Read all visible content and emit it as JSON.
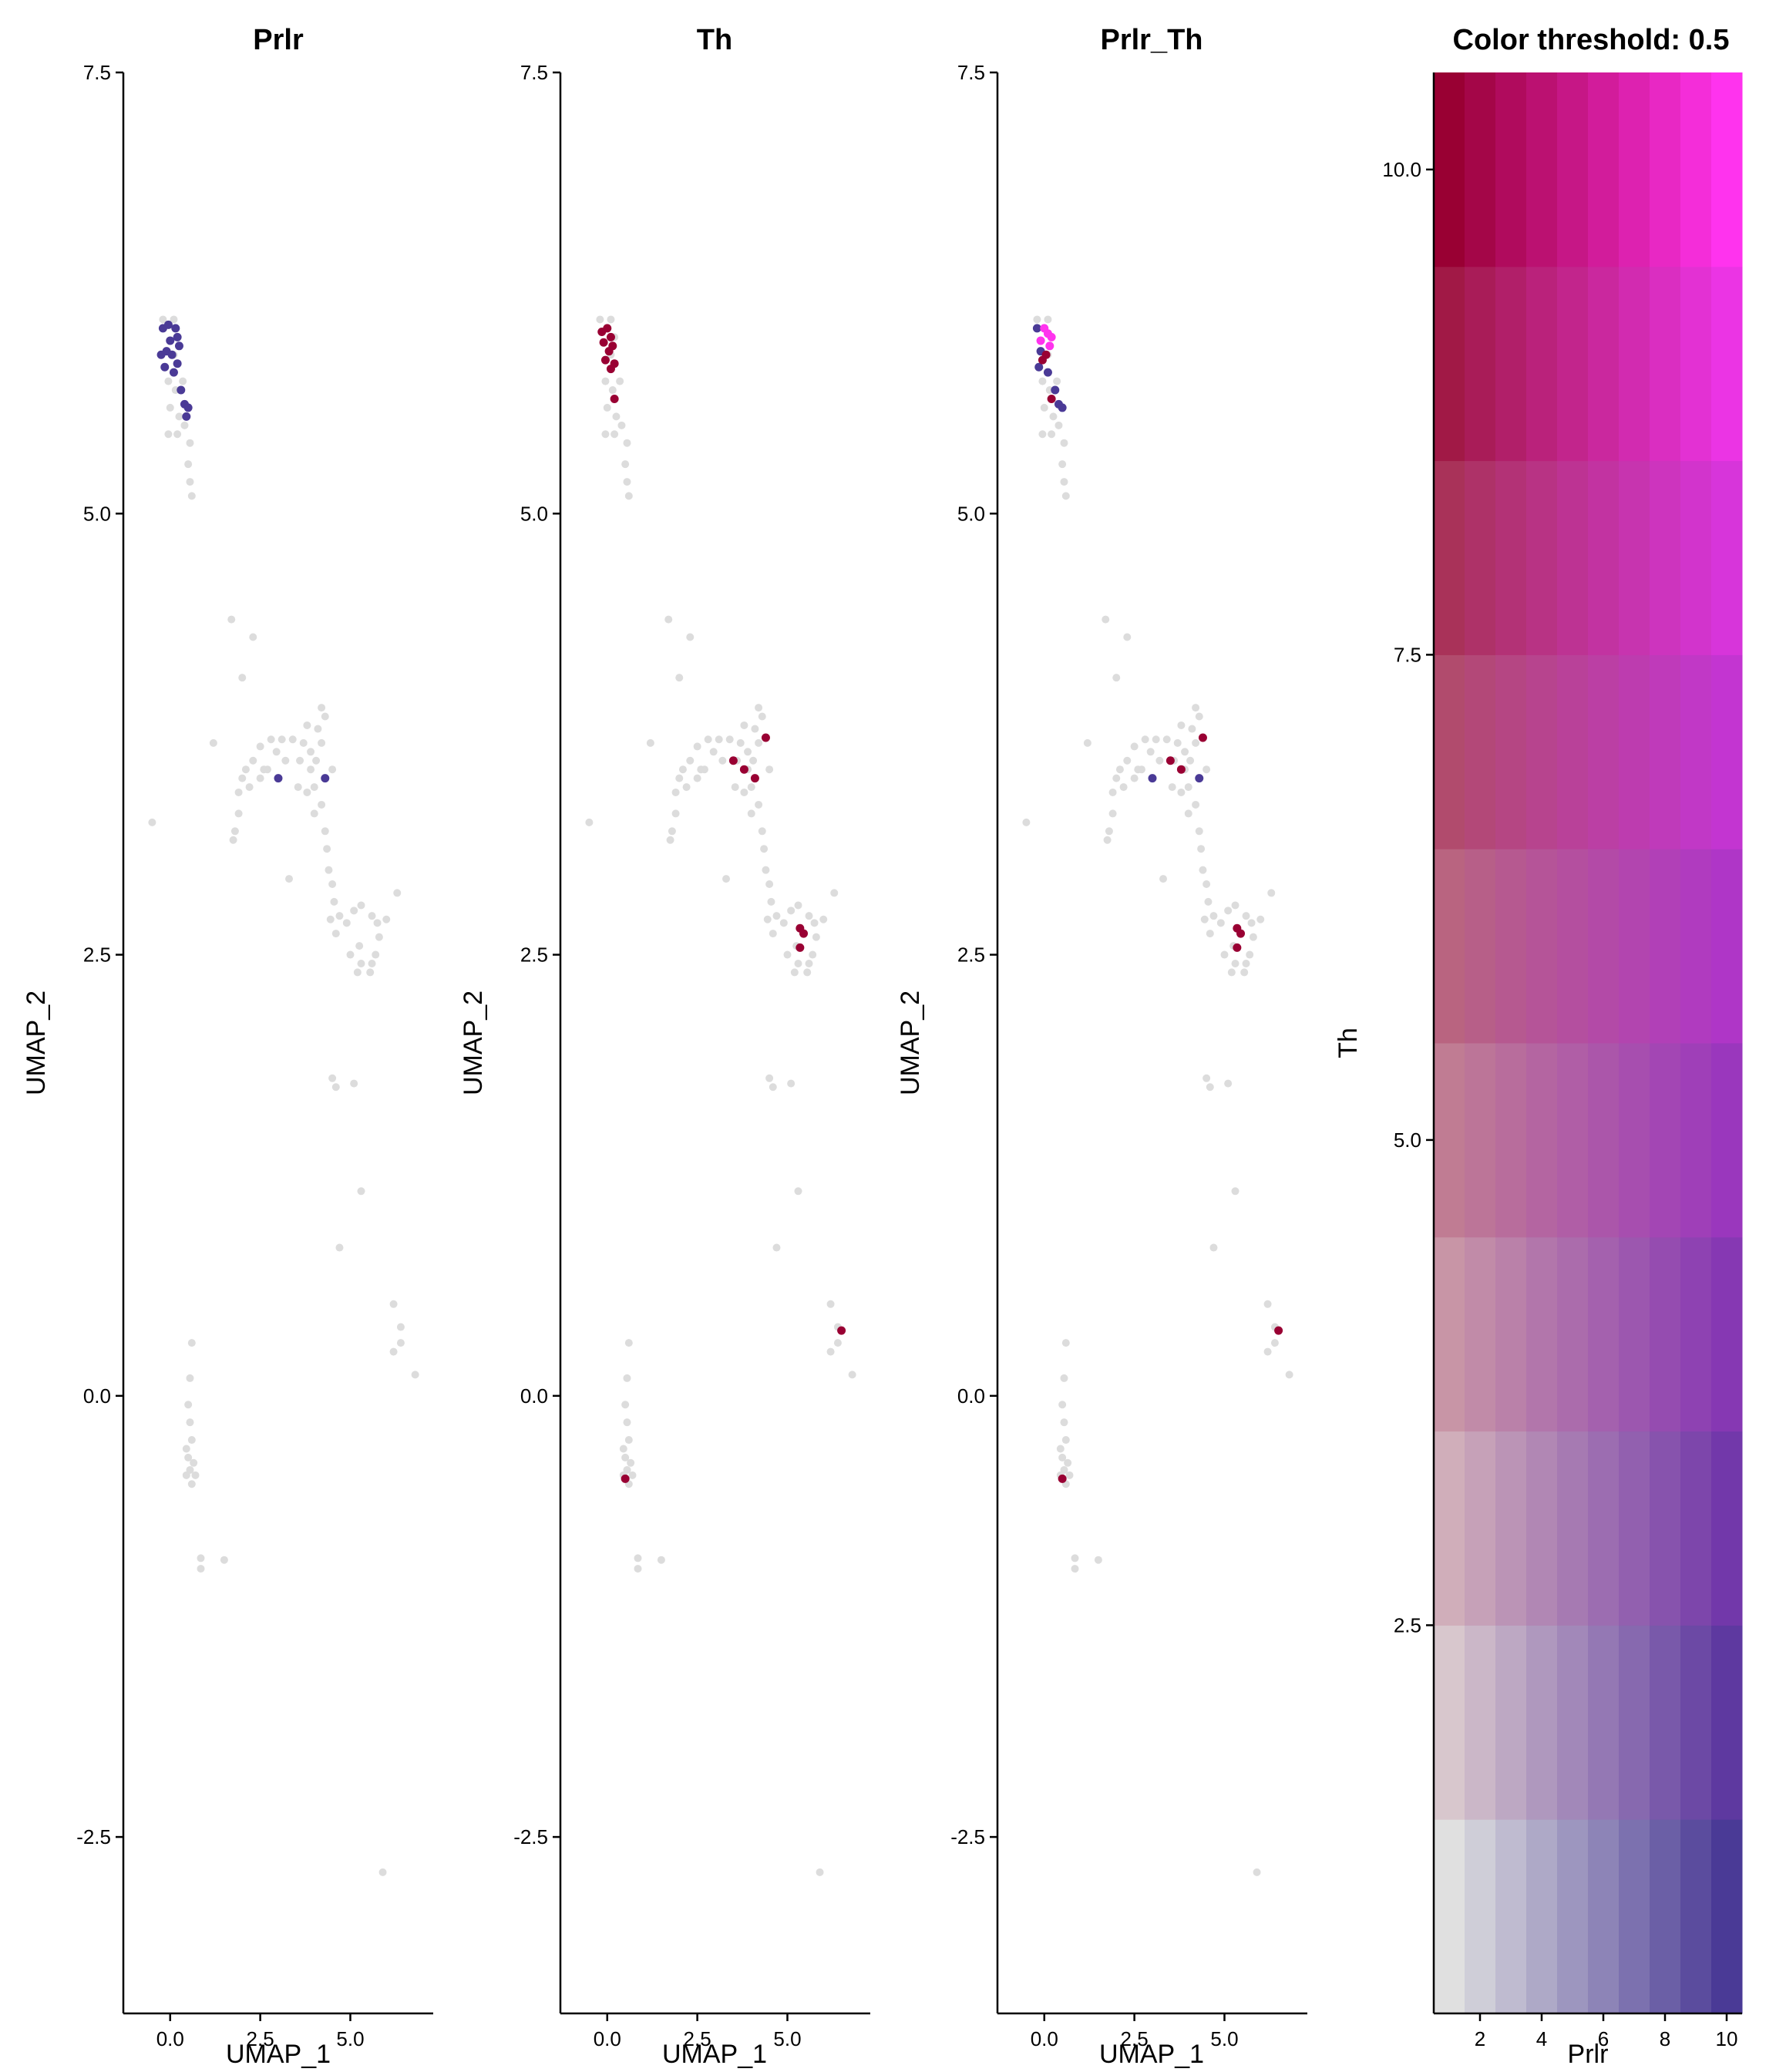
{
  "colors": {
    "point_background": "#DCDCDC",
    "prlr": "#4A3A96",
    "th": "#990033",
    "coexpress": "#FF33EE",
    "axis": "#000000"
  },
  "chart_data": [
    {
      "type": "scatter",
      "title": "Prlr",
      "xlabel": "UMAP_1",
      "ylabel": "UMAP_2",
      "xlim": [
        -1.3,
        7.3
      ],
      "ylim": [
        -3.5,
        7.5
      ],
      "xticks": [
        "0.0",
        "2.5",
        "5.0"
      ],
      "yticks": [
        "-2.5",
        "0.0",
        "2.5",
        "5.0",
        "7.5"
      ],
      "highlight_color": "#4A3A96",
      "highlighted_points": [
        [
          -0.2,
          6.05
        ],
        [
          -0.05,
          6.07
        ],
        [
          0.15,
          6.05
        ],
        [
          0.0,
          5.98
        ],
        [
          0.2,
          6.0
        ],
        [
          -0.1,
          5.92
        ],
        [
          0.05,
          5.9
        ],
        [
          0.25,
          5.95
        ],
        [
          -0.15,
          5.83
        ],
        [
          0.1,
          5.8
        ],
        [
          0.2,
          5.85
        ],
        [
          0.3,
          5.7
        ],
        [
          0.4,
          5.62
        ],
        [
          0.5,
          5.6
        ],
        [
          0.45,
          5.55
        ],
        [
          -0.25,
          5.9
        ],
        [
          3.0,
          3.5
        ],
        [
          4.3,
          3.5
        ]
      ],
      "background_points": "shared_umap"
    },
    {
      "type": "scatter",
      "title": "Th",
      "xlabel": "UMAP_1",
      "ylabel": "UMAP_2",
      "xlim": [
        -1.3,
        7.3
      ],
      "ylim": [
        -3.5,
        7.5
      ],
      "xticks": [
        "0.0",
        "2.5",
        "5.0"
      ],
      "yticks": [
        "-2.5",
        "0.0",
        "2.5",
        "5.0",
        "7.5"
      ],
      "highlight_color": "#990033",
      "highlighted_points": [
        [
          -0.15,
          6.03
        ],
        [
          0.0,
          6.05
        ],
        [
          0.1,
          6.0
        ],
        [
          0.15,
          5.95
        ],
        [
          -0.1,
          5.97
        ],
        [
          0.05,
          5.92
        ],
        [
          -0.05,
          5.87
        ],
        [
          0.2,
          5.85
        ],
        [
          0.1,
          5.82
        ],
        [
          0.2,
          5.65
        ],
        [
          3.5,
          3.6
        ],
        [
          3.8,
          3.55
        ],
        [
          4.1,
          3.5
        ],
        [
          4.4,
          3.73
        ],
        [
          5.35,
          2.65
        ],
        [
          5.45,
          2.62
        ],
        [
          5.35,
          2.54
        ],
        [
          6.5,
          0.37
        ],
        [
          0.5,
          -0.47
        ]
      ],
      "background_points": "shared_umap"
    },
    {
      "type": "scatter",
      "title": "Prlr_Th",
      "xlabel": "UMAP_1",
      "ylabel": "UMAP_2",
      "xlim": [
        -1.3,
        7.3
      ],
      "ylim": [
        -3.5,
        7.5
      ],
      "xticks": [
        "0.0",
        "2.5",
        "5.0"
      ],
      "yticks": [
        "-2.5",
        "0.0",
        "2.5",
        "5.0",
        "7.5"
      ],
      "highlighted_groups": [
        {
          "color": "#4A3A96",
          "points": [
            [
              -0.2,
              6.05
            ],
            [
              -0.1,
              5.92
            ],
            [
              -0.15,
              5.83
            ],
            [
              0.1,
              5.8
            ],
            [
              0.3,
              5.7
            ],
            [
              0.4,
              5.62
            ],
            [
              0.5,
              5.6
            ],
            [
              3.0,
              3.5
            ],
            [
              4.3,
              3.5
            ]
          ]
        },
        {
          "color": "#990033",
          "points": [
            [
              0.05,
              5.9
            ],
            [
              -0.05,
              5.87
            ],
            [
              0.2,
              5.65
            ],
            [
              3.5,
              3.6
            ],
            [
              3.8,
              3.55
            ],
            [
              4.4,
              3.73
            ],
            [
              5.35,
              2.65
            ],
            [
              5.45,
              2.62
            ],
            [
              5.35,
              2.54
            ],
            [
              6.5,
              0.37
            ],
            [
              0.5,
              -0.47
            ]
          ]
        },
        {
          "color": "#FF33EE",
          "points": [
            [
              0.0,
              6.05
            ],
            [
              0.1,
              6.02
            ],
            [
              0.2,
              6.0
            ],
            [
              0.15,
              5.95
            ],
            [
              -0.1,
              5.98
            ]
          ]
        }
      ],
      "background_points": "shared_umap"
    },
    {
      "type": "heatmap",
      "title": "Color threshold: 0.5",
      "xlabel": "Prlr",
      "ylabel": "Th",
      "xlim": [
        0.5,
        10.5
      ],
      "ylim": [
        0.5,
        10.5
      ],
      "xticks": [
        "2",
        "4",
        "6",
        "8",
        "10"
      ],
      "yticks": [
        "2.5",
        "5.0",
        "7.5",
        "10.0"
      ],
      "grid_size": 10,
      "cell_color_function": "blend(prlr_scale, th_scale)",
      "prlr_color": "#4A3A96",
      "th_color": "#990033",
      "low_color": "#E0E0E0",
      "coexpress_color": "#FF33EE"
    }
  ],
  "shared_umap": [
    [
      -0.2,
      6.1
    ],
    [
      0.1,
      6.1
    ],
    [
      0.2,
      6.0
    ],
    [
      -0.05,
      5.75
    ],
    [
      0.0,
      5.6
    ],
    [
      0.15,
      5.7
    ],
    [
      0.25,
      5.55
    ],
    [
      0.35,
      5.75
    ],
    [
      0.4,
      5.5
    ],
    [
      0.55,
      5.4
    ],
    [
      -0.05,
      5.45
    ],
    [
      0.2,
      5.45
    ],
    [
      0.5,
      5.28
    ],
    [
      0.55,
      5.18
    ],
    [
      0.6,
      5.1
    ],
    [
      0.1,
      5.9
    ],
    [
      1.7,
      4.4
    ],
    [
      2.3,
      4.3
    ],
    [
      2.0,
      4.07
    ],
    [
      1.2,
      3.7
    ],
    [
      3.8,
      3.8
    ],
    [
      4.1,
      3.78
    ],
    [
      4.2,
      3.7
    ],
    [
      3.9,
      3.65
    ],
    [
      3.7,
      3.7
    ],
    [
      3.4,
      3.72
    ],
    [
      3.1,
      3.72
    ],
    [
      2.8,
      3.72
    ],
    [
      2.5,
      3.68
    ],
    [
      2.3,
      3.6
    ],
    [
      2.1,
      3.55
    ],
    [
      2.0,
      3.5
    ],
    [
      1.9,
      3.42
    ],
    [
      1.9,
      3.3
    ],
    [
      1.8,
      3.2
    ],
    [
      1.75,
      3.15
    ],
    [
      2.2,
      3.45
    ],
    [
      2.5,
      3.5
    ],
    [
      2.7,
      3.55
    ],
    [
      3.2,
      3.6
    ],
    [
      3.6,
      3.6
    ],
    [
      3.9,
      3.55
    ],
    [
      4.0,
      3.45
    ],
    [
      4.2,
      3.35
    ],
    [
      4.3,
      3.2
    ],
    [
      4.35,
      3.1
    ],
    [
      4.4,
      2.98
    ],
    [
      4.5,
      2.9
    ],
    [
      4.55,
      2.8
    ],
    [
      4.45,
      2.7
    ],
    [
      4.6,
      2.62
    ],
    [
      4.7,
      2.72
    ],
    [
      4.9,
      2.68
    ],
    [
      5.1,
      2.75
    ],
    [
      5.3,
      2.78
    ],
    [
      5.6,
      2.72
    ],
    [
      5.8,
      2.6
    ],
    [
      5.7,
      2.5
    ],
    [
      5.6,
      2.45
    ],
    [
      5.3,
      2.45
    ],
    [
      5.2,
      2.4
    ],
    [
      5.0,
      2.5
    ],
    [
      5.25,
      2.55
    ],
    [
      5.55,
      2.4
    ],
    [
      5.75,
      2.68
    ],
    [
      6.3,
      2.85
    ],
    [
      6.0,
      2.7
    ],
    [
      3.3,
      2.93
    ],
    [
      4.2,
      3.9
    ],
    [
      4.3,
      3.85
    ],
    [
      4.05,
      3.6
    ],
    [
      3.55,
      3.45
    ],
    [
      2.6,
      3.55
    ],
    [
      2.95,
      3.65
    ],
    [
      4.5,
      3.55
    ],
    [
      4.0,
      3.3
    ],
    [
      3.8,
      3.42
    ],
    [
      -0.5,
      3.25
    ],
    [
      4.5,
      1.8
    ],
    [
      4.6,
      1.75
    ],
    [
      5.1,
      1.77
    ],
    [
      5.3,
      1.16
    ],
    [
      4.7,
      0.84
    ],
    [
      6.2,
      0.52
    ],
    [
      6.4,
      0.39
    ],
    [
      6.4,
      0.3
    ],
    [
      6.2,
      0.25
    ],
    [
      6.8,
      0.12
    ],
    [
      0.6,
      0.3
    ],
    [
      0.55,
      0.1
    ],
    [
      0.5,
      -0.05
    ],
    [
      0.55,
      -0.15
    ],
    [
      0.6,
      -0.25
    ],
    [
      0.45,
      -0.3
    ],
    [
      0.5,
      -0.35
    ],
    [
      0.65,
      -0.38
    ],
    [
      0.55,
      -0.42
    ],
    [
      0.45,
      -0.45
    ],
    [
      0.6,
      -0.5
    ],
    [
      0.7,
      -0.45
    ],
    [
      0.85,
      -0.92
    ],
    [
      0.85,
      -0.98
    ],
    [
      1.5,
      -0.93
    ],
    [
      5.9,
      -2.7
    ]
  ]
}
